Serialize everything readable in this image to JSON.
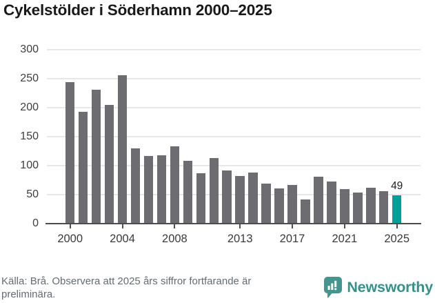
{
  "page": {
    "title": "Cykelstölder i Söderhamn 2000–2025"
  },
  "chart_data": {
    "type": "bar",
    "title": "Cykelstölder i Söderhamn 2000–2025",
    "categories": [
      "2000",
      "2001",
      "2002",
      "2003",
      "2004",
      "2005",
      "2006",
      "2007",
      "2008",
      "2009",
      "2010",
      "2011",
      "2012",
      "2013",
      "2014",
      "2015",
      "2016",
      "2017",
      "2018",
      "2019",
      "2020",
      "2021",
      "2022",
      "2023",
      "2024",
      "2025"
    ],
    "values": [
      243,
      192,
      231,
      204,
      255,
      130,
      117,
      118,
      133,
      108,
      87,
      113,
      91,
      82,
      88,
      69,
      61,
      66,
      41,
      81,
      72,
      59,
      54,
      62,
      56,
      49
    ],
    "ylim": [
      0,
      300
    ],
    "yticks": [
      0,
      50,
      100,
      150,
      200,
      250,
      300
    ],
    "xticks": [
      "2000",
      "2004",
      "2008",
      "2013",
      "2017",
      "2021",
      "2025"
    ],
    "grid": "horizontal",
    "legend": "none",
    "bar_color": "#6d6c71",
    "highlight_color": "#00a099",
    "highlight_category": "2025",
    "annotation": {
      "category": "2025",
      "label": "49"
    }
  },
  "footer": {
    "source_note": "Källa: Brå. Observera att 2025 års siffror fortfarande är preliminära.",
    "brand": "Newsworthy",
    "brand_color": "#37918a",
    "logo_icon": "speech-bubble-bar-chart"
  }
}
